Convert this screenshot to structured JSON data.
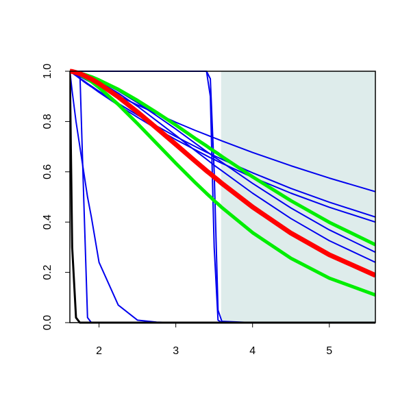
{
  "chart_data": {
    "type": "line",
    "x": [
      1.62,
      1.65,
      1.7,
      1.75,
      1.8,
      1.85,
      1.9,
      2,
      2.25,
      2.5,
      2.75,
      3,
      3.25,
      3.4,
      3.45,
      3.5,
      3.55,
      3.6,
      4,
      4.5,
      5,
      5.6
    ],
    "xlim": [
      1.62,
      5.6
    ],
    "ylim": [
      0,
      1
    ],
    "xticks": [
      2,
      3,
      4,
      5
    ],
    "yticks": [
      {
        "value": 0,
        "label": "0.0"
      },
      {
        "value": 0.2,
        "label": "0.2"
      },
      {
        "value": 0.4,
        "label": "0.4"
      },
      {
        "value": 0.6,
        "label": "0.6"
      },
      {
        "value": 0.8,
        "label": "0.8"
      },
      {
        "value": 1,
        "label": "1.0"
      }
    ],
    "highlight_xrange": [
      3.59,
      5.6
    ],
    "highlight_color": "#deeceb",
    "series": [
      {
        "color": "#0000ee",
        "width": 2,
        "values": [
          1,
          0.995,
          0.987,
          0.979,
          0.971,
          0.963,
          0.955,
          0.94,
          0.902,
          0.866,
          0.831,
          0.797,
          0.765,
          0.747,
          0.741,
          0.735,
          0.729,
          0.723,
          0.677,
          0.624,
          0.575,
          0.521
        ]
      },
      {
        "color": "#0000ee",
        "width": 2,
        "values": [
          1,
          0.993,
          0.983,
          0.972,
          0.962,
          0.951,
          0.941,
          0.92,
          0.872,
          0.826,
          0.782,
          0.74,
          0.701,
          0.678,
          0.671,
          0.664,
          0.657,
          0.65,
          0.596,
          0.534,
          0.479,
          0.42
        ]
      },
      {
        "color": "#0000ee",
        "width": 2,
        "values": [
          1,
          0.993,
          0.982,
          0.971,
          0.959,
          0.948,
          0.938,
          0.916,
          0.865,
          0.817,
          0.771,
          0.728,
          0.688,
          0.664,
          0.656,
          0.649,
          0.641,
          0.634,
          0.578,
          0.515,
          0.459,
          0.4
        ]
      },
      {
        "color": "#0000ee",
        "width": 2,
        "values": [
          1,
          0.999,
          0.996,
          0.992,
          0.987,
          0.982,
          0.976,
          0.962,
          0.922,
          0.875,
          0.823,
          0.77,
          0.714,
          0.681,
          0.67,
          0.659,
          0.649,
          0.638,
          0.554,
          0.456,
          0.369,
          0.28
        ]
      },
      {
        "color": "#0000ee",
        "width": 2,
        "values": [
          1,
          0.999,
          0.996,
          0.991,
          0.986,
          0.98,
          0.973,
          0.958,
          0.913,
          0.861,
          0.803,
          0.745,
          0.685,
          0.65,
          0.638,
          0.626,
          0.615,
          0.604,
          0.515,
          0.414,
          0.326,
          0.24
        ]
      },
      {
        "color": "#0000ee",
        "width": 2,
        "values": [
          1,
          0.92,
          0.8,
          0.7,
          0.6,
          0.5,
          0.42,
          0.24,
          0.07,
          0.01,
          0.002,
          0,
          0,
          0,
          0,
          0,
          0,
          0,
          0,
          0,
          0,
          0
        ]
      },
      {
        "color": "#0000ee",
        "width": 2,
        "values": [
          1,
          1,
          1,
          1,
          0.5,
          0.02,
          0,
          0,
          0,
          0,
          0,
          0,
          0,
          0,
          0,
          0,
          0,
          0,
          0,
          0,
          0,
          0
        ]
      },
      {
        "color": "#0000ee",
        "width": 2,
        "values": [
          1,
          1,
          1,
          1,
          1,
          1,
          1,
          1,
          1,
          1,
          1,
          1,
          1,
          1,
          0.97,
          0.6,
          0.05,
          0.005,
          0,
          0,
          0,
          0
        ]
      },
      {
        "color": "#0000ee",
        "width": 2,
        "values": [
          1,
          1,
          1,
          1,
          1,
          1,
          1,
          1,
          1,
          1,
          1,
          1,
          1,
          1,
          0.9,
          0.3,
          0.01,
          0,
          0,
          0,
          0,
          0
        ]
      },
      {
        "color": "#000000",
        "width": 3,
        "values": [
          1,
          0.3,
          0.02,
          0,
          0,
          0,
          0,
          0,
          0,
          0,
          0,
          0,
          0,
          0,
          0,
          0,
          0,
          0,
          0,
          0,
          0,
          0
        ]
      },
      {
        "color": "#00ee00",
        "width": 5,
        "values": [
          1,
          0.999,
          0.997,
          0.993,
          0.988,
          0.983,
          0.978,
          0.965,
          0.928,
          0.884,
          0.836,
          0.786,
          0.733,
          0.703,
          0.692,
          0.682,
          0.672,
          0.661,
          0.58,
          0.485,
          0.399,
          0.31
        ]
      },
      {
        "color": "#00ee00",
        "width": 5,
        "values": [
          1,
          0.998,
          0.993,
          0.987,
          0.978,
          0.969,
          0.959,
          0.935,
          0.868,
          0.792,
          0.713,
          0.634,
          0.558,
          0.514,
          0.5,
          0.485,
          0.472,
          0.458,
          0.358,
          0.256,
          0.177,
          0.11
        ]
      },
      {
        "color": "#ff0000",
        "width": 7,
        "values": [
          1,
          0.999,
          0.995,
          0.99,
          0.984,
          0.976,
          0.969,
          0.951,
          0.898,
          0.838,
          0.774,
          0.709,
          0.643,
          0.604,
          0.592,
          0.579,
          0.567,
          0.554,
          0.46,
          0.356,
          0.27,
          0.188
        ]
      }
    ]
  }
}
